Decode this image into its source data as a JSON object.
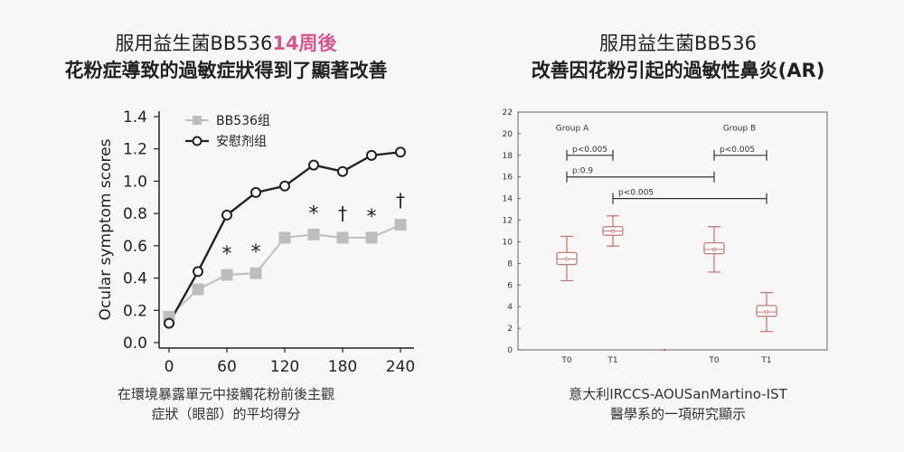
{
  "left": {
    "title_line1": "服用益生菌BB536",
    "title_line1_accent": "14周後",
    "title_line2": "花粉症導致的過敏症狀得到了顯著改善",
    "caption_line1": "在環境暴露單元中接觸花粉前後主觀",
    "caption_line2": "症狀（眼部）的平均得分"
  },
  "right": {
    "title_line1": "服用益生菌BB536",
    "title_line2": "改善因花粉引起的過敏性鼻炎(AR)",
    "caption_line1": "意大利IRCCS-AOUSanMartino-IST",
    "caption_line2": "醫學系的一項研究顯示"
  },
  "chart_data": [
    {
      "type": "line",
      "title": "",
      "xlabel": "",
      "ylabel": "Ocular symptom scores",
      "xlim": [
        0,
        240
      ],
      "ylim": [
        0,
        1.4
      ],
      "xticks": [
        0,
        60,
        120,
        180,
        240
      ],
      "yticks": [
        "0.0",
        "0.2",
        "0.4",
        "0.6",
        "0.8",
        "1.0",
        "1.2",
        "1.4"
      ],
      "legend_position": "top-left",
      "series": [
        {
          "name": "BB536组",
          "color": "#bdbdbd",
          "marker": "square",
          "x": [
            0,
            30,
            60,
            90,
            120,
            150,
            180,
            210,
            240
          ],
          "y": [
            0.16,
            0.33,
            0.42,
            0.43,
            0.65,
            0.67,
            0.65,
            0.65,
            0.73
          ]
        },
        {
          "name": "安慰剂组",
          "color": "#222222",
          "marker": "circle",
          "x": [
            0,
            30,
            60,
            90,
            120,
            150,
            180,
            210,
            240
          ],
          "y": [
            0.12,
            0.44,
            0.79,
            0.93,
            0.97,
            1.1,
            1.06,
            1.16,
            1.18
          ]
        }
      ],
      "annotations": [
        {
          "x": 60,
          "text": "*"
        },
        {
          "x": 90,
          "text": "*"
        },
        {
          "x": 150,
          "text": "*"
        },
        {
          "x": 180,
          "text": "†"
        },
        {
          "x": 210,
          "text": "*"
        },
        {
          "x": 240,
          "text": "†"
        }
      ]
    },
    {
      "type": "box",
      "ylim": [
        0,
        22
      ],
      "yticks": [
        0,
        2,
        4,
        6,
        8,
        10,
        12,
        14,
        16,
        18,
        20,
        22
      ],
      "group_labels": [
        "Group A",
        "Group B"
      ],
      "categories": [
        "T0",
        "T1",
        "T0",
        "T1"
      ],
      "color": "#c47a7a",
      "boxes": [
        {
          "label": "T0",
          "whisker_low": 6.4,
          "q1": 7.9,
          "median": 8.4,
          "mean": 8.4,
          "q3": 9.0,
          "whisker_high": 10.5
        },
        {
          "label": "T1",
          "whisker_low": 9.6,
          "q1": 10.6,
          "median": 11.0,
          "mean": 11.0,
          "q3": 11.4,
          "whisker_high": 12.4
        },
        {
          "label": "T0",
          "whisker_low": 7.2,
          "q1": 8.9,
          "median": 9.3,
          "mean": 9.3,
          "q3": 9.9,
          "whisker_high": 11.4
        },
        {
          "label": "T1",
          "whisker_low": 1.7,
          "q1": 3.1,
          "median": 3.5,
          "mean": 3.5,
          "q3": 4.1,
          "whisker_high": 5.3
        }
      ],
      "comparisons": [
        {
          "from": 0,
          "to": 1,
          "y": 18,
          "text": "p<0.005"
        },
        {
          "from": 0,
          "to": 2,
          "y": 16,
          "text": "p:0.9"
        },
        {
          "from": 1,
          "to": 3,
          "y": 14,
          "text": "p<0.005"
        },
        {
          "from": 2,
          "to": 3,
          "y": 18,
          "text": "p<0.005"
        }
      ]
    }
  ]
}
